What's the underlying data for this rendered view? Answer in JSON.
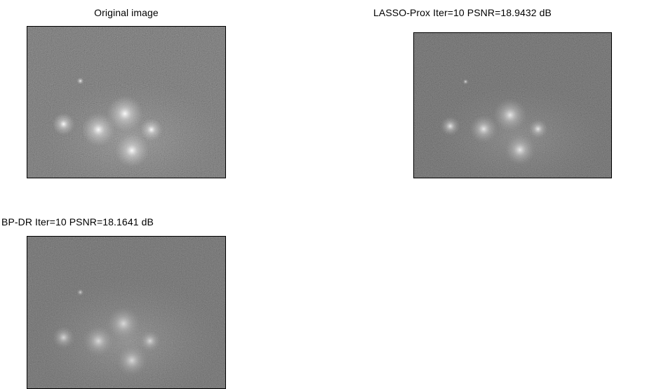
{
  "figure": {
    "panels": [
      {
        "title": "Original image",
        "image_description_name": "galaxy-cluster-original"
      },
      {
        "title": "LASSO-Prox Iter=10 PSNR=18.9432 dB",
        "image_description_name": "galaxy-cluster-lasso-prox"
      },
      {
        "title": "BP-DR Iter=10 PSNR=18.1641 dB",
        "image_description_name": "galaxy-cluster-bp-dr"
      }
    ]
  }
}
